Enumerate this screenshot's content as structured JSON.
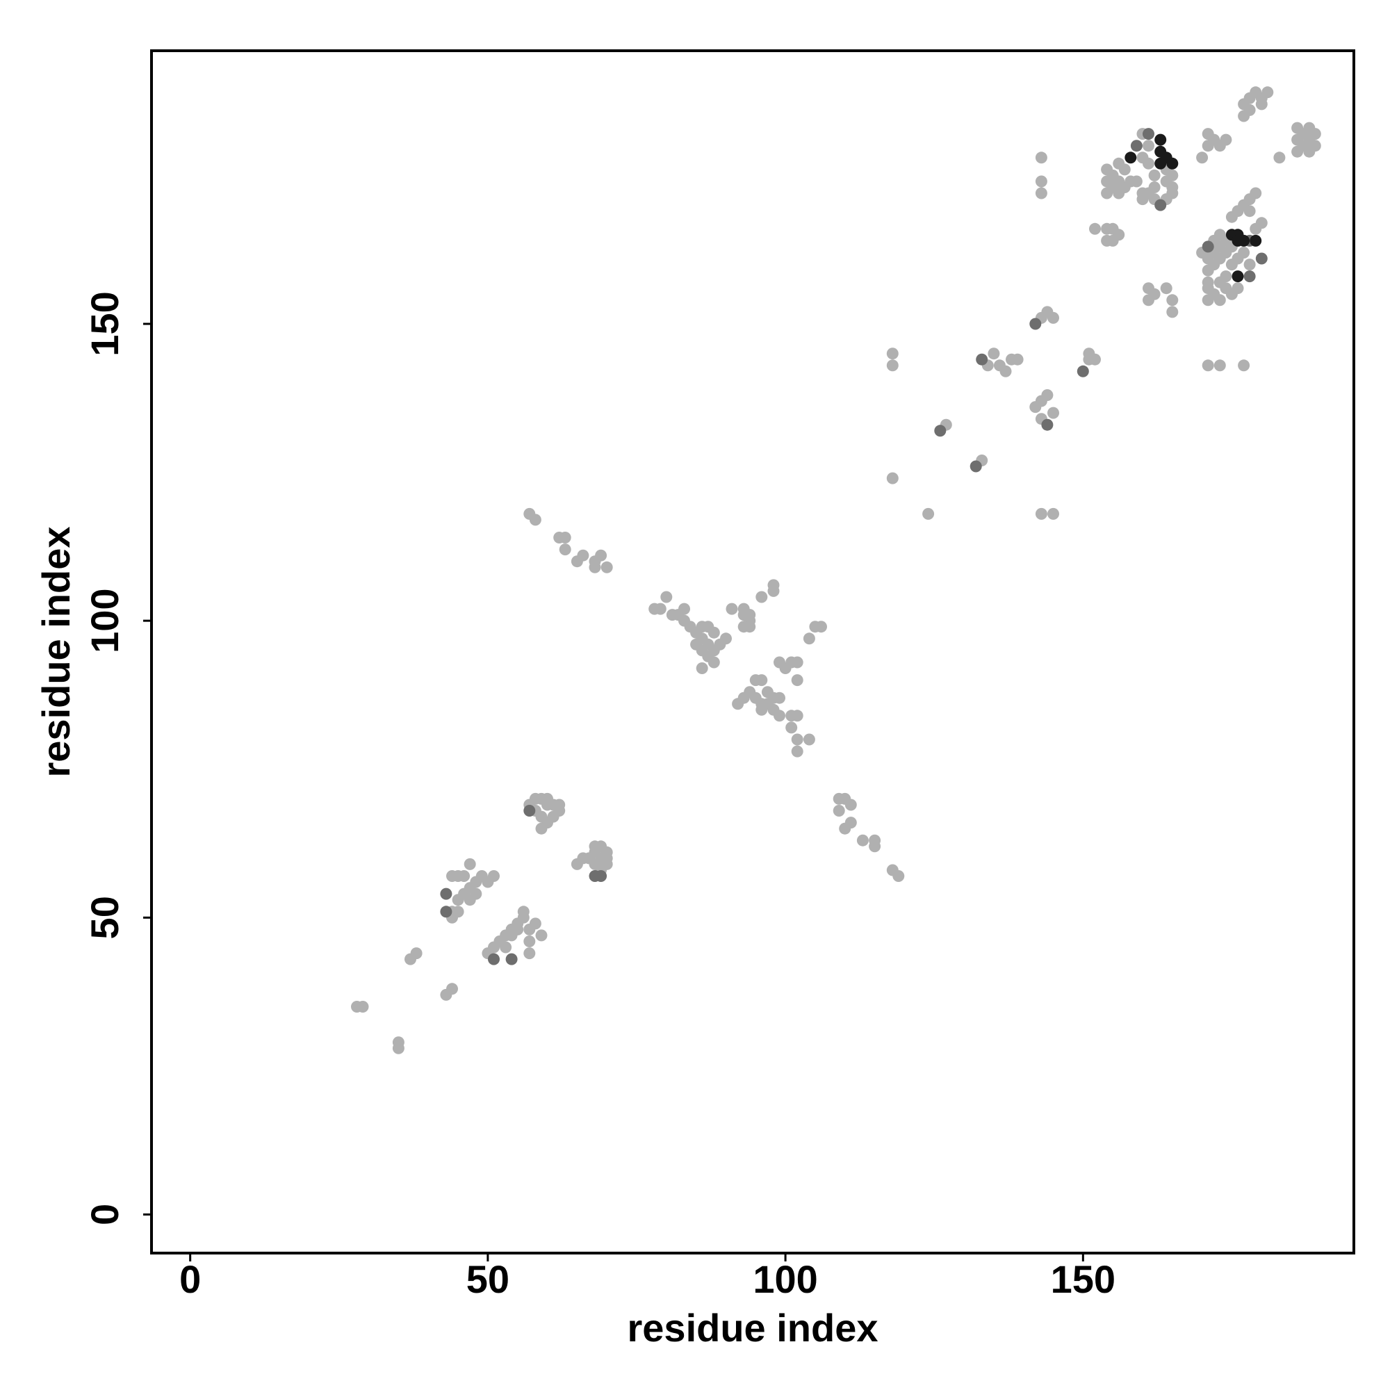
{
  "chart_data": {
    "type": "scatter",
    "title": "",
    "xlabel": "residue index",
    "ylabel": "residue index",
    "xlim": [
      -6.5,
      195.5
    ],
    "ylim": [
      -6.5,
      196
    ],
    "xticks": [
      0,
      50,
      100,
      150
    ],
    "yticks": [
      0,
      50,
      100,
      150
    ],
    "grid": false,
    "legend": "none",
    "colors": {
      "light": "#b0b0b0",
      "mid": "#6e6e6e",
      "dark": "#1a1a1a"
    },
    "points": [
      [
        28,
        35,
        "light"
      ],
      [
        29,
        35,
        "light"
      ],
      [
        35,
        29,
        "light"
      ],
      [
        35,
        28,
        "light"
      ],
      [
        37,
        43,
        "light"
      ],
      [
        38,
        44,
        "light"
      ],
      [
        43,
        37,
        "light"
      ],
      [
        44,
        38,
        "light"
      ],
      [
        43,
        54,
        "mid"
      ],
      [
        43,
        51,
        "mid"
      ],
      [
        44,
        57,
        "light"
      ],
      [
        45,
        57,
        "light"
      ],
      [
        44,
        51,
        "light"
      ],
      [
        45,
        51,
        "light"
      ],
      [
        45,
        53,
        "light"
      ],
      [
        46,
        54,
        "light"
      ],
      [
        47,
        55,
        "light"
      ],
      [
        47,
        59,
        "light"
      ],
      [
        48,
        56,
        "light"
      ],
      [
        49,
        57,
        "light"
      ],
      [
        50,
        56,
        "light"
      ],
      [
        51,
        57,
        "light"
      ],
      [
        46,
        57,
        "light"
      ],
      [
        47,
        53,
        "light"
      ],
      [
        48,
        54,
        "light"
      ],
      [
        44,
        50,
        "light"
      ],
      [
        50,
        44,
        "light"
      ],
      [
        51,
        45,
        "light"
      ],
      [
        52,
        46,
        "light"
      ],
      [
        53,
        47,
        "light"
      ],
      [
        54,
        48,
        "light"
      ],
      [
        55,
        49,
        "light"
      ],
      [
        56,
        50,
        "light"
      ],
      [
        56,
        51,
        "light"
      ],
      [
        55,
        48,
        "light"
      ],
      [
        54,
        47,
        "light"
      ],
      [
        57,
        48,
        "light"
      ],
      [
        58,
        49,
        "light"
      ],
      [
        57,
        46,
        "light"
      ],
      [
        57,
        44,
        "light"
      ],
      [
        59,
        47,
        "light"
      ],
      [
        52,
        46,
        "light"
      ],
      [
        53,
        45,
        "light"
      ],
      [
        51,
        43,
        "mid"
      ],
      [
        54,
        43,
        "mid"
      ],
      [
        57,
        68,
        "mid"
      ],
      [
        57,
        69,
        "light"
      ],
      [
        58,
        68,
        "light"
      ],
      [
        58,
        70,
        "light"
      ],
      [
        59,
        67,
        "light"
      ],
      [
        59,
        70,
        "light"
      ],
      [
        60,
        69,
        "light"
      ],
      [
        60,
        70,
        "light"
      ],
      [
        61,
        69,
        "light"
      ],
      [
        62,
        68,
        "light"
      ],
      [
        62,
        69,
        "light"
      ],
      [
        59,
        65,
        "light"
      ],
      [
        60,
        66,
        "light"
      ],
      [
        61,
        67,
        "light"
      ],
      [
        65,
        59,
        "light"
      ],
      [
        66,
        60,
        "light"
      ],
      [
        67,
        60,
        "light"
      ],
      [
        68,
        61,
        "light"
      ],
      [
        68,
        62,
        "light"
      ],
      [
        69,
        62,
        "light"
      ],
      [
        69,
        58,
        "light"
      ],
      [
        69,
        59,
        "light"
      ],
      [
        69,
        60,
        "light"
      ],
      [
        70,
        59,
        "light"
      ],
      [
        70,
        60,
        "light"
      ],
      [
        70,
        61,
        "light"
      ],
      [
        68,
        59,
        "light"
      ],
      [
        68,
        57,
        "mid"
      ],
      [
        69,
        57,
        "mid"
      ],
      [
        57,
        118,
        "light"
      ],
      [
        58,
        117,
        "light"
      ],
      [
        62,
        114,
        "light"
      ],
      [
        63,
        114,
        "light"
      ],
      [
        63,
        112,
        "light"
      ],
      [
        65,
        110,
        "light"
      ],
      [
        66,
        111,
        "light"
      ],
      [
        68,
        109,
        "light"
      ],
      [
        68,
        110,
        "light"
      ],
      [
        69,
        111,
        "light"
      ],
      [
        70,
        109,
        "light"
      ],
      [
        78,
        102,
        "light"
      ],
      [
        79,
        102,
        "light"
      ],
      [
        80,
        104,
        "light"
      ],
      [
        81,
        101,
        "light"
      ],
      [
        82,
        101,
        "light"
      ],
      [
        83,
        100,
        "light"
      ],
      [
        83,
        102,
        "light"
      ],
      [
        84,
        99,
        "light"
      ],
      [
        85,
        98,
        "light"
      ],
      [
        86,
        97,
        "light"
      ],
      [
        87,
        96,
        "light"
      ],
      [
        88,
        95,
        "light"
      ],
      [
        89,
        96,
        "light"
      ],
      [
        86,
        99,
        "light"
      ],
      [
        87,
        99,
        "light"
      ],
      [
        88,
        98,
        "light"
      ],
      [
        85,
        96,
        "light"
      ],
      [
        86,
        95,
        "light"
      ],
      [
        87,
        94,
        "light"
      ],
      [
        88,
        93,
        "light"
      ],
      [
        86,
        92,
        "light"
      ],
      [
        90,
        97,
        "light"
      ],
      [
        91,
        102,
        "light"
      ],
      [
        93,
        102,
        "light"
      ],
      [
        93,
        101,
        "light"
      ],
      [
        94,
        100,
        "light"
      ],
      [
        94,
        101,
        "light"
      ],
      [
        93,
        99,
        "light"
      ],
      [
        94,
        99,
        "light"
      ],
      [
        96,
        104,
        "light"
      ],
      [
        98,
        106,
        "light"
      ],
      [
        98,
        105,
        "light"
      ],
      [
        92,
        86,
        "light"
      ],
      [
        93,
        87,
        "light"
      ],
      [
        94,
        88,
        "light"
      ],
      [
        95,
        87,
        "light"
      ],
      [
        96,
        86,
        "light"
      ],
      [
        96,
        85,
        "light"
      ],
      [
        97,
        86,
        "light"
      ],
      [
        98,
        85,
        "light"
      ],
      [
        95,
        90,
        "light"
      ],
      [
        96,
        90,
        "light"
      ],
      [
        97,
        88,
        "light"
      ],
      [
        98,
        87,
        "light"
      ],
      [
        99,
        87,
        "light"
      ],
      [
        99,
        84,
        "light"
      ],
      [
        101,
        84,
        "light"
      ],
      [
        102,
        84,
        "light"
      ],
      [
        101,
        82,
        "light"
      ],
      [
        102,
        80,
        "light"
      ],
      [
        102,
        78,
        "light"
      ],
      [
        104,
        80,
        "light"
      ],
      [
        99,
        93,
        "light"
      ],
      [
        100,
        92,
        "light"
      ],
      [
        101,
        93,
        "light"
      ],
      [
        102,
        93,
        "light"
      ],
      [
        102,
        90,
        "light"
      ],
      [
        104,
        97,
        "light"
      ],
      [
        105,
        99,
        "light"
      ],
      [
        106,
        99,
        "light"
      ],
      [
        109,
        70,
        "light"
      ],
      [
        109,
        68,
        "light"
      ],
      [
        110,
        70,
        "light"
      ],
      [
        111,
        69,
        "light"
      ],
      [
        110,
        65,
        "light"
      ],
      [
        111,
        66,
        "light"
      ],
      [
        113,
        63,
        "light"
      ],
      [
        115,
        63,
        "light"
      ],
      [
        115,
        62,
        "light"
      ],
      [
        118,
        58,
        "light"
      ],
      [
        119,
        57,
        "light"
      ],
      [
        118,
        145,
        "light"
      ],
      [
        118,
        143,
        "light"
      ],
      [
        118,
        124,
        "light"
      ],
      [
        124,
        118,
        "light"
      ],
      [
        126,
        132,
        "mid"
      ],
      [
        127,
        133,
        "light"
      ],
      [
        132,
        126,
        "mid"
      ],
      [
        133,
        127,
        "light"
      ],
      [
        133,
        144,
        "mid"
      ],
      [
        134,
        143,
        "light"
      ],
      [
        135,
        145,
        "light"
      ],
      [
        136,
        143,
        "light"
      ],
      [
        137,
        142,
        "light"
      ],
      [
        138,
        144,
        "light"
      ],
      [
        139,
        144,
        "light"
      ],
      [
        142,
        150,
        "mid"
      ],
      [
        143,
        151,
        "light"
      ],
      [
        144,
        152,
        "light"
      ],
      [
        145,
        151,
        "light"
      ],
      [
        142,
        136,
        "light"
      ],
      [
        143,
        137,
        "light"
      ],
      [
        144,
        138,
        "light"
      ],
      [
        143,
        134,
        "light"
      ],
      [
        144,
        133,
        "mid"
      ],
      [
        145,
        135,
        "light"
      ],
      [
        143,
        118,
        "light"
      ],
      [
        145,
        118,
        "light"
      ],
      [
        143,
        178,
        "light"
      ],
      [
        143,
        174,
        "light"
      ],
      [
        143,
        172,
        "light"
      ],
      [
        150,
        142,
        "mid"
      ],
      [
        151,
        144,
        "light"
      ],
      [
        152,
        144,
        "light"
      ],
      [
        151,
        145,
        "light"
      ],
      [
        152,
        166,
        "light"
      ],
      [
        154,
        166,
        "light"
      ],
      [
        154,
        164,
        "light"
      ],
      [
        155,
        164,
        "light"
      ],
      [
        155,
        166,
        "light"
      ],
      [
        156,
        165,
        "light"
      ],
      [
        154,
        172,
        "light"
      ],
      [
        154,
        174,
        "light"
      ],
      [
        154,
        176,
        "light"
      ],
      [
        155,
        173,
        "light"
      ],
      [
        155,
        175,
        "light"
      ],
      [
        156,
        172,
        "light"
      ],
      [
        156,
        174,
        "light"
      ],
      [
        156,
        177,
        "light"
      ],
      [
        157,
        176,
        "light"
      ],
      [
        157,
        173,
        "light"
      ],
      [
        158,
        174,
        "light"
      ],
      [
        158,
        178,
        "dark"
      ],
      [
        159,
        180,
        "mid"
      ],
      [
        159,
        174,
        "light"
      ],
      [
        160,
        182,
        "light"
      ],
      [
        160,
        178,
        "light"
      ],
      [
        161,
        182,
        "mid"
      ],
      [
        161,
        180,
        "light"
      ],
      [
        161,
        177,
        "light"
      ],
      [
        161,
        172,
        "light"
      ],
      [
        162,
        175,
        "light"
      ],
      [
        162,
        173,
        "light"
      ],
      [
        163,
        181,
        "dark"
      ],
      [
        163,
        179,
        "dark"
      ],
      [
        163,
        177,
        "dark"
      ],
      [
        164,
        178,
        "dark"
      ],
      [
        164,
        176,
        "light"
      ],
      [
        164,
        174,
        "light"
      ],
      [
        164,
        171,
        "light"
      ],
      [
        165,
        177,
        "dark"
      ],
      [
        165,
        175,
        "light"
      ],
      [
        165,
        173,
        "light"
      ],
      [
        165,
        172,
        "light"
      ],
      [
        163,
        170,
        "mid"
      ],
      [
        162,
        171,
        "light"
      ],
      [
        160,
        171,
        "light"
      ],
      [
        160,
        172,
        "light"
      ],
      [
        161,
        156,
        "light"
      ],
      [
        161,
        154,
        "light"
      ],
      [
        162,
        155,
        "light"
      ],
      [
        164,
        156,
        "light"
      ],
      [
        165,
        154,
        "light"
      ],
      [
        165,
        152,
        "light"
      ],
      [
        170,
        178,
        "light"
      ],
      [
        171,
        182,
        "light"
      ],
      [
        171,
        180,
        "light"
      ],
      [
        172,
        181,
        "light"
      ],
      [
        173,
        180,
        "light"
      ],
      [
        174,
        181,
        "light"
      ],
      [
        170,
        162,
        "light"
      ],
      [
        171,
        163,
        "mid"
      ],
      [
        171,
        161,
        "light"
      ],
      [
        171,
        159,
        "light"
      ],
      [
        172,
        164,
        "light"
      ],
      [
        172,
        162,
        "light"
      ],
      [
        172,
        160,
        "light"
      ],
      [
        173,
        165,
        "light"
      ],
      [
        173,
        163,
        "light"
      ],
      [
        173,
        161,
        "light"
      ],
      [
        174,
        164,
        "light"
      ],
      [
        174,
        162,
        "light"
      ],
      [
        174,
        158,
        "light"
      ],
      [
        175,
        165,
        "dark"
      ],
      [
        175,
        163,
        "light"
      ],
      [
        175,
        160,
        "light"
      ],
      [
        176,
        165,
        "dark"
      ],
      [
        176,
        164,
        "dark"
      ],
      [
        176,
        161,
        "light"
      ],
      [
        176,
        158,
        "dark"
      ],
      [
        177,
        164,
        "dark"
      ],
      [
        177,
        162,
        "light"
      ],
      [
        178,
        164,
        "mid"
      ],
      [
        178,
        160,
        "light"
      ],
      [
        178,
        158,
        "mid"
      ],
      [
        179,
        164,
        "dark"
      ],
      [
        180,
        161,
        "mid"
      ],
      [
        171,
        156,
        "light"
      ],
      [
        171,
        154,
        "light"
      ],
      [
        172,
        155,
        "light"
      ],
      [
        173,
        154,
        "light"
      ],
      [
        174,
        156,
        "light"
      ],
      [
        175,
        155,
        "light"
      ],
      [
        176,
        156,
        "light"
      ],
      [
        173,
        157,
        "light"
      ],
      [
        171,
        157,
        "light"
      ],
      [
        175,
        168,
        "light"
      ],
      [
        176,
        169,
        "light"
      ],
      [
        177,
        170,
        "light"
      ],
      [
        178,
        171,
        "light"
      ],
      [
        179,
        172,
        "light"
      ],
      [
        178,
        169,
        "light"
      ],
      [
        179,
        166,
        "light"
      ],
      [
        180,
        167,
        "light"
      ],
      [
        171,
        143,
        "light"
      ],
      [
        173,
        143,
        "light"
      ],
      [
        177,
        143,
        "light"
      ],
      [
        177,
        187,
        "light"
      ],
      [
        178,
        188,
        "light"
      ],
      [
        179,
        189,
        "light"
      ],
      [
        180,
        188,
        "light"
      ],
      [
        181,
        189,
        "light"
      ],
      [
        180,
        187,
        "light"
      ],
      [
        178,
        186,
        "light"
      ],
      [
        183,
        178,
        "light"
      ],
      [
        177,
        185,
        "light"
      ],
      [
        186,
        179,
        "light"
      ],
      [
        186,
        181,
        "light"
      ],
      [
        187,
        180,
        "light"
      ],
      [
        187,
        182,
        "light"
      ],
      [
        188,
        179,
        "light"
      ],
      [
        188,
        181,
        "light"
      ],
      [
        189,
        182,
        "light"
      ],
      [
        189,
        180,
        "light"
      ],
      [
        186,
        183,
        "light"
      ],
      [
        188,
        183,
        "light"
      ]
    ]
  }
}
